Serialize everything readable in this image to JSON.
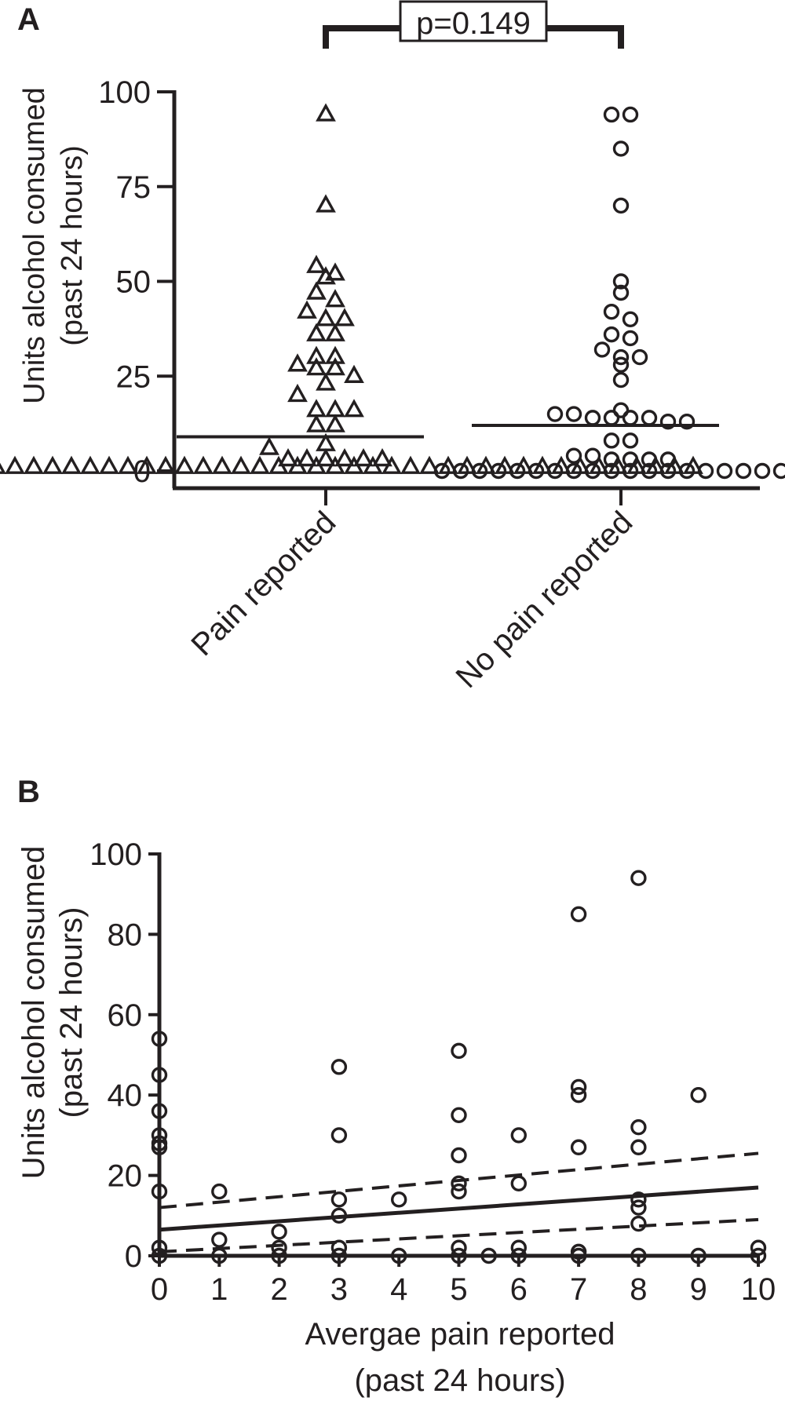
{
  "chart_data": [
    {
      "panel_label": "A",
      "type": "scatter",
      "ylabel_line1": "Units alcohol consumed",
      "ylabel_line2": "(past 24 hours)",
      "categories": [
        "Pain reported",
        "No pain reported"
      ],
      "ylim": [
        0,
        100
      ],
      "yticks": [
        0,
        25,
        50,
        75,
        100
      ],
      "annotation": "p=0.149",
      "series": [
        {
          "category": "Pain reported",
          "marker": "triangle",
          "mean": 9,
          "points": [
            94,
            70,
            54,
            52,
            51,
            47,
            45,
            42,
            40,
            40,
            36,
            36,
            30,
            30,
            28,
            27,
            27,
            25,
            23,
            20,
            16,
            16,
            16,
            12,
            12,
            7,
            6,
            3,
            3,
            3,
            3,
            3,
            3,
            1,
            1,
            1,
            1,
            1,
            1,
            1,
            1,
            1,
            1,
            1,
            1,
            1,
            1,
            1,
            1,
            1,
            1,
            1,
            1,
            1,
            1,
            1,
            1,
            1,
            1,
            1,
            1,
            1,
            1,
            1,
            1,
            1,
            1,
            1,
            1,
            1,
            1,
            1,
            1
          ]
        },
        {
          "category": "No pain reported",
          "marker": "circle",
          "mean": 12,
          "points": [
            94,
            94,
            85,
            70,
            50,
            47,
            42,
            40,
            36,
            35,
            32,
            30,
            30,
            28,
            24,
            16,
            15,
            15,
            14,
            14,
            14,
            14,
            13,
            13,
            8,
            8,
            4,
            4,
            3,
            3,
            3,
            3,
            0,
            0,
            0,
            0,
            0,
            0,
            0,
            0,
            0,
            0,
            0,
            0,
            0,
            0,
            0,
            0,
            0,
            0,
            0,
            0
          ]
        }
      ]
    },
    {
      "panel_label": "B",
      "type": "scatter",
      "ylabel_line1": "Units alcohol consumed",
      "ylabel_line2": "(past 24 hours)",
      "xlabel_line1": "Avergae pain reported",
      "xlabel_line2": "(past 24 hours)",
      "xlim": [
        0,
        10
      ],
      "ylim": [
        0,
        100
      ],
      "xticks": [
        0,
        1,
        2,
        3,
        4,
        5,
        6,
        7,
        8,
        9,
        10
      ],
      "yticks": [
        0,
        20,
        40,
        60,
        80,
        100
      ],
      "points": [
        [
          0,
          54
        ],
        [
          0,
          45
        ],
        [
          0,
          36
        ],
        [
          0,
          30
        ],
        [
          0,
          28
        ],
        [
          0,
          27
        ],
        [
          0,
          16
        ],
        [
          0,
          2
        ],
        [
          0,
          0
        ],
        [
          1,
          16
        ],
        [
          1,
          4
        ],
        [
          1,
          0
        ],
        [
          2,
          6
        ],
        [
          2,
          2
        ],
        [
          2,
          0
        ],
        [
          3,
          47
        ],
        [
          3,
          30
        ],
        [
          3,
          14
        ],
        [
          3,
          10
        ],
        [
          3,
          2
        ],
        [
          3,
          0
        ],
        [
          4,
          14
        ],
        [
          4,
          0
        ],
        [
          5,
          51
        ],
        [
          5,
          35
        ],
        [
          5,
          25
        ],
        [
          5,
          18
        ],
        [
          5,
          16
        ],
        [
          5,
          2
        ],
        [
          5,
          0
        ],
        [
          5.5,
          0
        ],
        [
          6,
          30
        ],
        [
          6,
          18
        ],
        [
          6,
          2
        ],
        [
          6,
          0
        ],
        [
          7,
          85
        ],
        [
          7,
          42
        ],
        [
          7,
          40
        ],
        [
          7,
          27
        ],
        [
          7,
          1
        ],
        [
          7,
          0
        ],
        [
          8,
          94
        ],
        [
          8,
          32
        ],
        [
          8,
          27
        ],
        [
          8,
          14
        ],
        [
          8,
          12
        ],
        [
          8,
          8
        ],
        [
          8,
          0
        ],
        [
          9,
          40
        ],
        [
          9,
          0
        ],
        [
          10,
          2
        ],
        [
          10,
          0
        ]
      ],
      "regression": {
        "y_at_xmin": 6.5,
        "y_at_xmax": 17
      },
      "ci_upper": {
        "y_at_xmin": 12,
        "y_at_xmax": 25.5
      },
      "ci_lower": {
        "y_at_xmin": 1,
        "y_at_xmax": 9
      }
    }
  ]
}
